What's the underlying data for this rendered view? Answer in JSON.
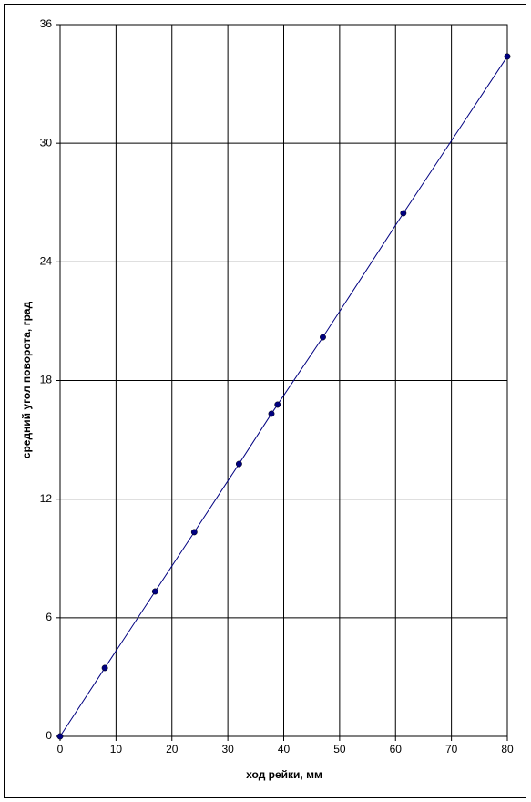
{
  "chart_data": {
    "type": "line",
    "xlabel": "ход рейки, мм",
    "ylabel": "средний угол поворота, град",
    "x": [
      0,
      8,
      17,
      24,
      32,
      37.8,
      38.9,
      47,
      61.4,
      80
    ],
    "series": [
      {
        "color": "#000080",
        "values": [
          0,
          3.46,
          7.33,
          10.33,
          13.78,
          16.32,
          16.78,
          20.19,
          26.46,
          34.39
        ]
      }
    ],
    "markers": true,
    "xlim": [
      0,
      80
    ],
    "xticks": [
      0,
      10,
      20,
      30,
      40,
      50,
      60,
      70,
      80
    ],
    "ylim": [
      0,
      36
    ],
    "yticks": [
      0,
      6,
      12,
      18,
      24,
      30,
      36
    ],
    "grid": true
  }
}
